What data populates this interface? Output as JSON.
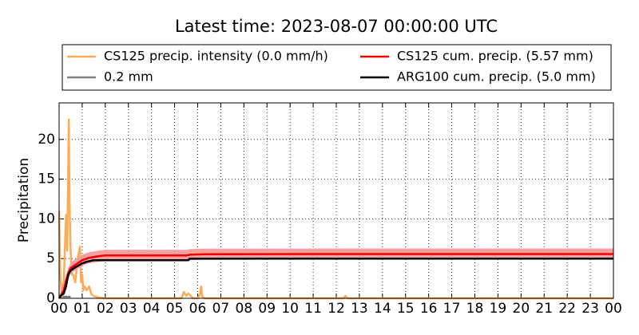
{
  "chart_data": {
    "type": "line",
    "title": "Latest time: 2023-08-07 00:00:00 UTC",
    "y_label": "Precipitation",
    "xlim": [
      0,
      24
    ],
    "ylim": [
      0,
      24.6
    ],
    "xticks": [
      {
        "value": 0,
        "label": "00"
      },
      {
        "value": 1,
        "label": "01"
      },
      {
        "value": 2,
        "label": "02"
      },
      {
        "value": 3,
        "label": "03"
      },
      {
        "value": 4,
        "label": "04"
      },
      {
        "value": 5,
        "label": "05"
      },
      {
        "value": 6,
        "label": "06"
      },
      {
        "value": 7,
        "label": "07"
      },
      {
        "value": 8,
        "label": "08"
      },
      {
        "value": 9,
        "label": "09"
      },
      {
        "value": 10,
        "label": "10"
      },
      {
        "value": 11,
        "label": "11"
      },
      {
        "value": 12,
        "label": "12"
      },
      {
        "value": 13,
        "label": "13"
      },
      {
        "value": 14,
        "label": "14"
      },
      {
        "value": 15,
        "label": "15"
      },
      {
        "value": 16,
        "label": "16"
      },
      {
        "value": 17,
        "label": "17"
      },
      {
        "value": 18,
        "label": "18"
      },
      {
        "value": 19,
        "label": "19"
      },
      {
        "value": 20,
        "label": "20"
      },
      {
        "value": 21,
        "label": "21"
      },
      {
        "value": 22,
        "label": "22"
      },
      {
        "value": 23,
        "label": "23"
      },
      {
        "value": 24,
        "label": "00"
      }
    ],
    "yticks": [
      0,
      5,
      10,
      15,
      20
    ],
    "grid": true,
    "series": [
      {
        "name": "CS125 precip. intensity (0.0 mm/h)",
        "color": "#ffaa55",
        "x": [
          0,
          0.05,
          0.1,
          0.2,
          0.3,
          0.35,
          0.42,
          0.45,
          0.5,
          0.55,
          0.6,
          0.7,
          0.8,
          0.9,
          0.95,
          1.0,
          1.05,
          1.1,
          1.2,
          1.3,
          1.4,
          1.5,
          1.7,
          2.0,
          5.3,
          5.4,
          5.5,
          5.6,
          5.8,
          6.0,
          6.1,
          6.15,
          6.2,
          6.3,
          12.3,
          12.4,
          12.5,
          24
        ],
        "values": [
          11,
          3,
          1,
          2,
          10.5,
          6,
          22.5,
          12,
          6,
          3,
          3,
          2,
          5,
          6.5,
          2,
          3,
          1,
          1.5,
          1,
          1.5,
          0.5,
          0.3,
          0.1,
          0,
          0,
          0.8,
          0.3,
          0.6,
          0,
          0,
          0.5,
          1.5,
          0.2,
          0,
          0,
          0.3,
          0,
          0
        ]
      },
      {
        "name": "0.2 mm",
        "color": "#808080",
        "x": [
          0,
          0.5
        ],
        "values": [
          0.2,
          0.2
        ]
      },
      {
        "name": "CS125 cum. precip. (5.57 mm)",
        "color": "#ee0000",
        "band_color": "#f4a0a0",
        "x": [
          0,
          0.1,
          0.2,
          0.3,
          0.4,
          0.5,
          0.7,
          0.9,
          1.0,
          1.3,
          1.7,
          2.0,
          5.5,
          5.7,
          6.3,
          11,
          24
        ],
        "values": [
          0,
          0.5,
          1,
          2.2,
          3.2,
          3.8,
          4.2,
          4.6,
          4.8,
          5.1,
          5.3,
          5.4,
          5.4,
          5.5,
          5.55,
          5.57,
          5.57
        ],
        "lower": [
          0,
          0,
          0.3,
          1.5,
          2.5,
          3.1,
          3.5,
          3.9,
          4.1,
          4.4,
          4.6,
          4.7,
          4.7,
          4.8,
          4.85,
          4.87,
          4.87
        ],
        "upper": [
          0,
          1.2,
          1.7,
          2.9,
          3.9,
          4.5,
          4.9,
          5.3,
          5.5,
          5.8,
          6.0,
          6.1,
          6.1,
          6.2,
          6.25,
          6.27,
          6.27
        ]
      },
      {
        "name": "ARG100 cum. precip. (5.0 mm)",
        "color": "#000000",
        "x": [
          0,
          0.1,
          0.2,
          0.3,
          0.4,
          0.5,
          0.7,
          1.0,
          1.2,
          1.5,
          5.6,
          5.65,
          24
        ],
        "values": [
          0,
          0.4,
          0.6,
          1.5,
          3.0,
          3.5,
          3.9,
          4.4,
          4.6,
          4.8,
          4.8,
          5.0,
          5.0
        ]
      }
    ]
  }
}
